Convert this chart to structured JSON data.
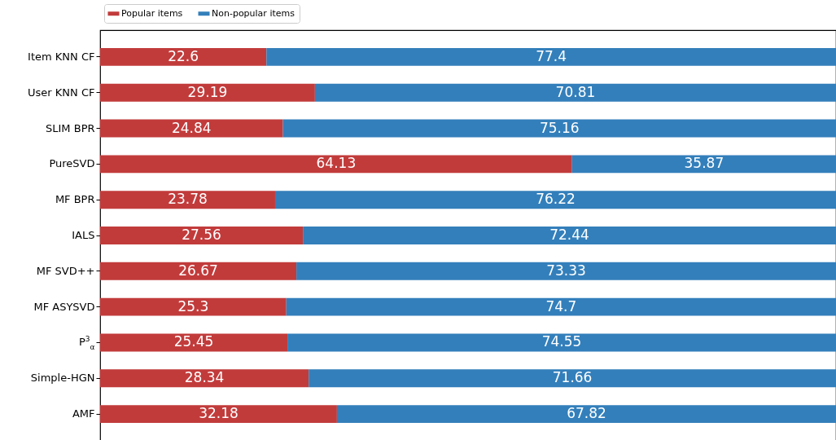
{
  "chart_data": {
    "type": "bar",
    "orientation": "horizontal",
    "stacked": true,
    "data_labels": true,
    "legend": "top left",
    "tick_labels": "y",
    "xlim": [
      0,
      100
    ],
    "categories": [
      "Item KNN CF",
      "User KNN CF",
      "SLIM BPR",
      "PureSVD",
      "MF BPR",
      "IALS",
      "MF SVD++",
      "MF ASYSVD",
      "P$^{3}$$_{α}$",
      "Simple-HGN",
      "AMF"
    ],
    "series": [
      {
        "name": "Popular items",
        "color": "#c23b3b",
        "values": [
          22.6,
          29.19,
          24.84,
          64.13,
          23.78,
          27.56,
          26.67,
          25.3,
          25.45,
          28.34,
          32.18
        ]
      },
      {
        "name": "Non-popular items",
        "color": "#337fbb",
        "values": [
          77.4,
          70.81,
          75.16,
          35.87,
          76.22,
          72.44,
          73.33,
          74.7,
          74.55,
          71.66,
          67.82
        ]
      }
    ]
  }
}
